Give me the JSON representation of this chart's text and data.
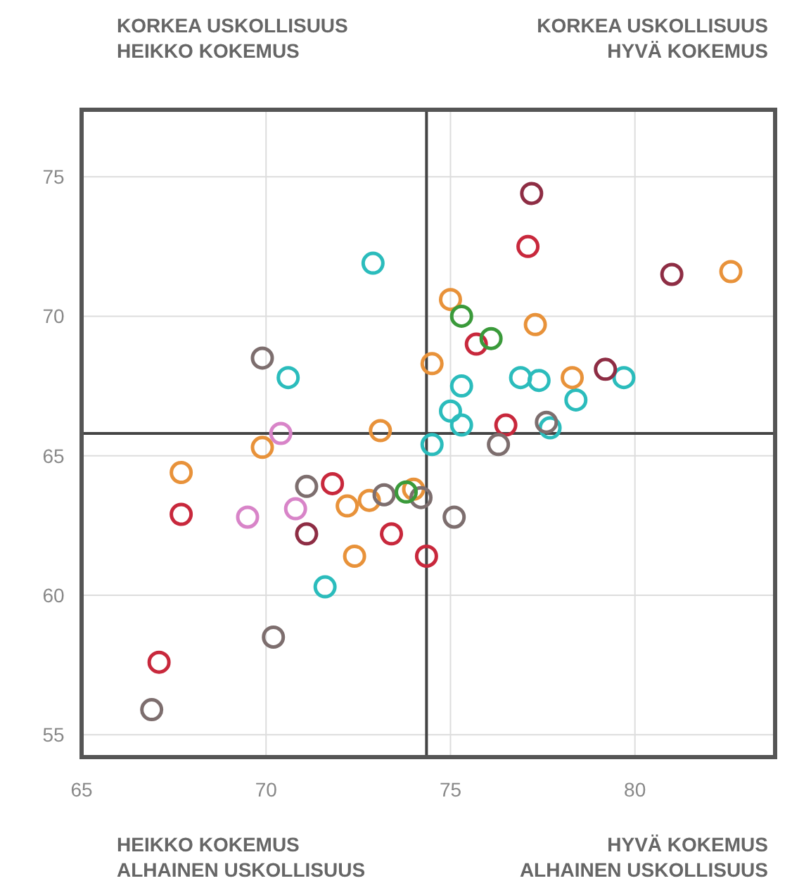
{
  "chart_data": {
    "type": "scatter",
    "marker": "circle",
    "grid": true,
    "xlim": [
      65,
      83.8
    ],
    "ylim": [
      54.2,
      77.4
    ],
    "xticks": [
      65,
      70,
      75,
      80
    ],
    "yticks": [
      55,
      60,
      65,
      70,
      75
    ],
    "ref_lines": [
      {
        "axis": "x",
        "value": 74.35,
        "color": "#444444"
      },
      {
        "axis": "y",
        "value": 65.8,
        "color": "#444444"
      }
    ],
    "annotations": [
      "KORKEA USKOLLISUUS\nHEIKKO KOKEMUS",
      "KORKEA USKOLLISUUS\nHYVÄ KOKEMUS",
      "HEIKKO KOKEMUS\nALHAINEN USKOLLISUUS",
      "HYVÄ KOKEMUS\nALHAINEN USKOLLISUUS"
    ],
    "series": [
      {
        "color": "#2bbcbc",
        "x": [
          72.9,
          70.6,
          71.6,
          74.5,
          75.3,
          75.0,
          75.3,
          76.9,
          77.4,
          79.7,
          78.4,
          77.7
        ],
        "values": [
          71.9,
          67.8,
          60.3,
          65.4,
          67.5,
          66.6,
          66.1,
          67.8,
          67.7,
          67.8,
          67.0,
          66.0
        ]
      },
      {
        "color": "#e8923a",
        "x": [
          73.1,
          69.9,
          67.7,
          72.2,
          72.8,
          72.4,
          74.0,
          74.5,
          75.0,
          77.3,
          78.3,
          82.6
        ],
        "values": [
          65.9,
          65.3,
          64.4,
          63.2,
          63.4,
          61.4,
          63.8,
          68.3,
          70.6,
          69.7,
          67.8,
          71.6
        ]
      },
      {
        "color": "#c8283c",
        "x": [
          71.8,
          67.7,
          73.4,
          67.1,
          74.35,
          75.7,
          76.5,
          77.1
        ],
        "values": [
          64.0,
          62.9,
          62.2,
          57.6,
          61.4,
          69.0,
          66.1,
          72.5
        ]
      },
      {
        "color": "#8e2d44",
        "x": [
          71.1,
          77.2,
          79.2,
          81.0
        ],
        "values": [
          62.2,
          74.4,
          68.1,
          71.5
        ]
      },
      {
        "color": "#7d6e6e",
        "x": [
          69.9,
          71.1,
          73.2,
          70.2,
          66.9,
          74.2,
          75.1,
          77.6,
          76.3
        ],
        "values": [
          68.5,
          63.9,
          63.6,
          58.5,
          55.9,
          63.5,
          62.8,
          66.2,
          65.4
        ]
      },
      {
        "color": "#3a9a3a",
        "x": [
          73.8,
          75.3,
          76.1
        ],
        "values": [
          63.7,
          70.0,
          69.2
        ]
      },
      {
        "color": "#d884c8",
        "x": [
          70.4,
          70.8,
          69.5
        ],
        "values": [
          65.8,
          63.1,
          62.8
        ]
      }
    ]
  }
}
